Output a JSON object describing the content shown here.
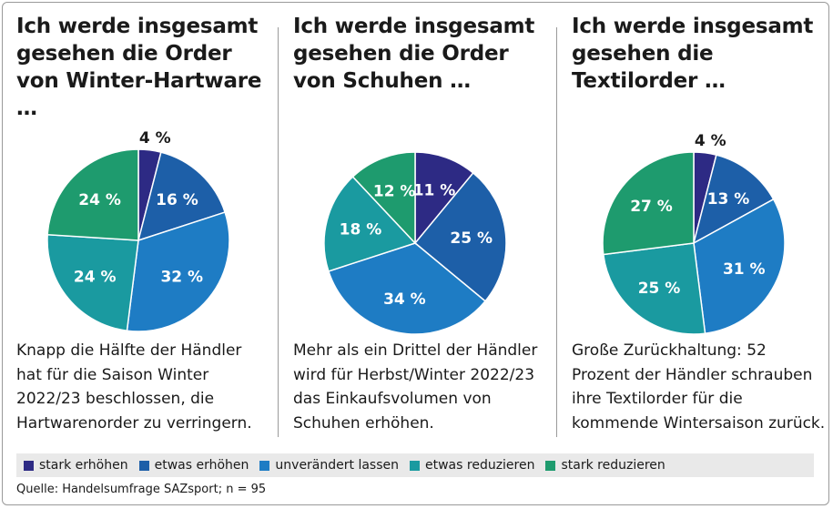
{
  "categories": [
    "stark erhöhen",
    "etwas erhöhen",
    "unverändert lassen",
    "etwas reduzieren",
    "stark reduzieren"
  ],
  "colors": [
    "#2d2a84",
    "#1d5fa8",
    "#1e7cc4",
    "#1a9aa0",
    "#1e9b6e"
  ],
  "chart_data": [
    {
      "type": "pie",
      "title": "Ich werde insgesamt gesehen die Order von Winter-Hartware …",
      "categories": [
        "stark erhöhen",
        "etwas erhöhen",
        "unverändert lassen",
        "etwas reduzieren",
        "stark reduzieren"
      ],
      "values": [
        4,
        16,
        32,
        24,
        24
      ],
      "labels": [
        "4 %",
        "16 %",
        "32 %",
        "24 %",
        "24 %"
      ],
      "description": "Knapp die Hälfte der Händler hat für die Saison Winter 2022/23 beschlossen, die Hartwarenorder zu verringern."
    },
    {
      "type": "pie",
      "title": "Ich werde insgesamt gesehen die Order von Schuhen …",
      "categories": [
        "stark erhöhen",
        "etwas erhöhen",
        "unverändert lassen",
        "etwas reduzieren",
        "stark reduzieren"
      ],
      "values": [
        11,
        25,
        34,
        18,
        12
      ],
      "labels": [
        "11 %",
        "25 %",
        "34 %",
        "18 %",
        "12 %"
      ],
      "description": "Mehr als ein Drittel der Händler wird für Herbst/Winter 2022/23 das Einkaufsvolumen von Schuhen erhöhen."
    },
    {
      "type": "pie",
      "title": "Ich werde insgesamt gesehen die Textilorder …",
      "categories": [
        "stark erhöhen",
        "etwas erhöhen",
        "unverändert lassen",
        "etwas reduzieren",
        "stark reduzieren"
      ],
      "values": [
        4,
        13,
        31,
        25,
        27
      ],
      "labels": [
        "4 %",
        "13 %",
        "31 %",
        "25 %",
        "27 %"
      ],
      "description": "Große Zurückhaltung: 52 Prozent der Händler schrauben ihre Textilorder für die kommende Wintersaison zurück."
    }
  ],
  "source": "Quelle: Handelsumfrage SAZsport; n = 95"
}
